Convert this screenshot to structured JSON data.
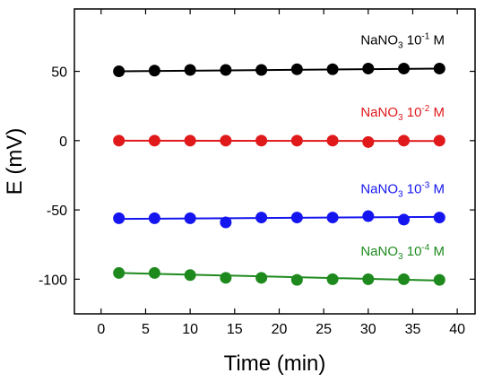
{
  "chart_data": {
    "type": "scatter",
    "xlabel": "Time (min)",
    "ylabel": "E (mV)",
    "xlim": [
      -3,
      42
    ],
    "ylim": [
      -125,
      95
    ],
    "xticks": [
      0,
      5,
      10,
      15,
      20,
      25,
      30,
      35,
      40
    ],
    "xtick_labels": [
      "0",
      "5",
      "10",
      "15",
      "20",
      "25",
      "30",
      "35",
      "40"
    ],
    "yticks": [
      -100,
      -50,
      0,
      50
    ],
    "ytick_labels": [
      "-100",
      "-50",
      "0",
      "50"
    ],
    "grid": false,
    "legend": "none",
    "series": [
      {
        "name_parts": {
          "base": "NaNO",
          "sub": "3",
          "mid": " 10",
          "sup": "-1",
          "tail": " M"
        },
        "color": "#000000",
        "x": [
          2,
          6,
          10,
          14,
          18,
          22,
          26,
          30,
          34,
          38
        ],
        "y": [
          50,
          50.5,
          51,
          51,
          51,
          51.5,
          51.5,
          52,
          52,
          52
        ],
        "fit": [
          50,
          52
        ]
      },
      {
        "name_parts": {
          "base": "NaNO",
          "sub": "3",
          "mid": " 10",
          "sup": "-2",
          "tail": " M"
        },
        "color": "#e0191b",
        "x": [
          2,
          6,
          10,
          14,
          18,
          22,
          26,
          30,
          34,
          38
        ],
        "y": [
          0,
          0,
          0,
          0,
          0,
          0,
          0,
          -1,
          0,
          0
        ],
        "fit": [
          0,
          -0.3
        ]
      },
      {
        "name_parts": {
          "base": "NaNO",
          "sub": "3",
          "mid": " 10",
          "sup": "-3",
          "tail": " M"
        },
        "color": "#1515f0",
        "x": [
          2,
          6,
          10,
          14,
          18,
          22,
          26,
          30,
          34,
          38
        ],
        "y": [
          -56,
          -56,
          -56,
          -59,
          -55.5,
          -55.5,
          -55.5,
          -54.5,
          -57,
          -55.5
        ],
        "fit": [
          -56.5,
          -55
        ]
      },
      {
        "name_parts": {
          "base": "NaNO",
          "sub": "3",
          "mid": " 10",
          "sup": "-4",
          "tail": " M"
        },
        "color": "#1e8a1e",
        "x": [
          2,
          6,
          10,
          14,
          18,
          22,
          26,
          30,
          34,
          38
        ],
        "y": [
          -95.5,
          -95.5,
          -97,
          -99,
          -99,
          -100.5,
          -100,
          -100,
          -100,
          -100.5
        ],
        "fit": [
          -95.5,
          -101
        ]
      }
    ]
  }
}
